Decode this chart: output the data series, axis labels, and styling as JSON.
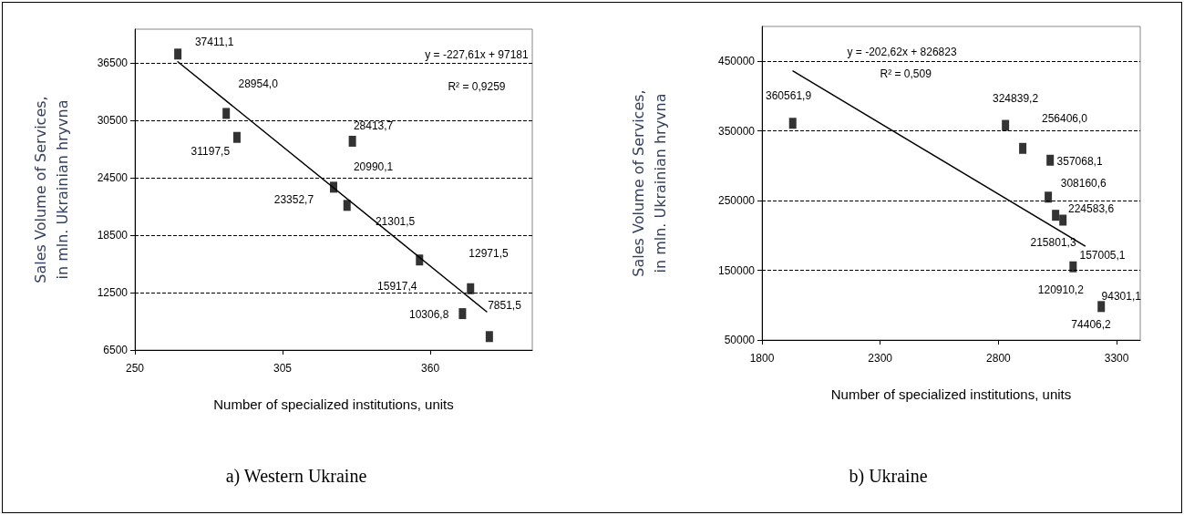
{
  "chart_data": [
    {
      "type": "scatter",
      "title": "a) Western Ukraine",
      "xlabel": "Number of specialized institutions, units",
      "ylabel": "Sales Volume of Services,\nin mln. Ukrainian hryvna",
      "xlim": [
        250,
        398
      ],
      "xticks": [
        250,
        305,
        360
      ],
      "ylim": [
        6500,
        40000
      ],
      "yticks": [
        6500,
        12500,
        18500,
        24500,
        30500,
        36500
      ],
      "grid": "y",
      "marker": "square",
      "series": [
        {
          "color": "#000000",
          "x": [
            266,
            284,
            288,
            331,
            324,
            329,
            356,
            375,
            372,
            382
          ],
          "values": [
            37400,
            31200,
            28700,
            28300,
            23500,
            21600,
            15900,
            12900,
            10300,
            7900
          ]
        },
        {
          "type": "line",
          "color": "#000000",
          "line_style": "solid",
          "marker": "none",
          "x": [
            266,
            381
          ],
          "values": [
            36600,
            10500
          ]
        }
      ],
      "annotations": [
        "37411,1",
        "28954,0",
        "31197,5",
        "28413,7",
        "20990,1",
        "23352,7",
        "21301,5",
        "15917,4",
        "12971,5",
        "10306,8",
        "7851,5",
        "y = -227,61x + 97181",
        "R² = 0,9259"
      ]
    },
    {
      "type": "scatter",
      "title": "b) Ukraine",
      "xlabel": "Number of specialized institutions, units",
      "ylabel": "Sales Volume of Services,\nin mln. Ukrainian hryvna",
      "xlim": [
        1800,
        3400
      ],
      "xticks": [
        1800,
        2300,
        2800,
        3300
      ],
      "ylim": [
        50000,
        500000
      ],
      "yticks": [
        50000,
        150000,
        250000,
        350000,
        450000
      ],
      "grid": "y",
      "marker": "square",
      "series": [
        {
          "color": "#000000",
          "x": [
            1930,
            2830,
            2903,
            3019,
            3011,
            3042,
            3073,
            3116,
            3235
          ],
          "values": [
            361000,
            358000,
            325000,
            308000,
            255000,
            229000,
            222000,
            155000,
            98000
          ]
        },
        {
          "type": "line",
          "color": "#000000",
          "line_style": "solid",
          "marker": "none",
          "x": [
            1931,
            3166
          ],
          "values": [
            436000,
            185000
          ]
        }
      ],
      "annotations": [
        "360561,9",
        "324839,2",
        "256406,0",
        "357068,1",
        "308160,6",
        "224583,6",
        "215801,3",
        "157005,1",
        "120910,2",
        "94301,1",
        "74406,2",
        "y = -202,62x + 826823",
        "R² = 0,509"
      ]
    }
  ]
}
